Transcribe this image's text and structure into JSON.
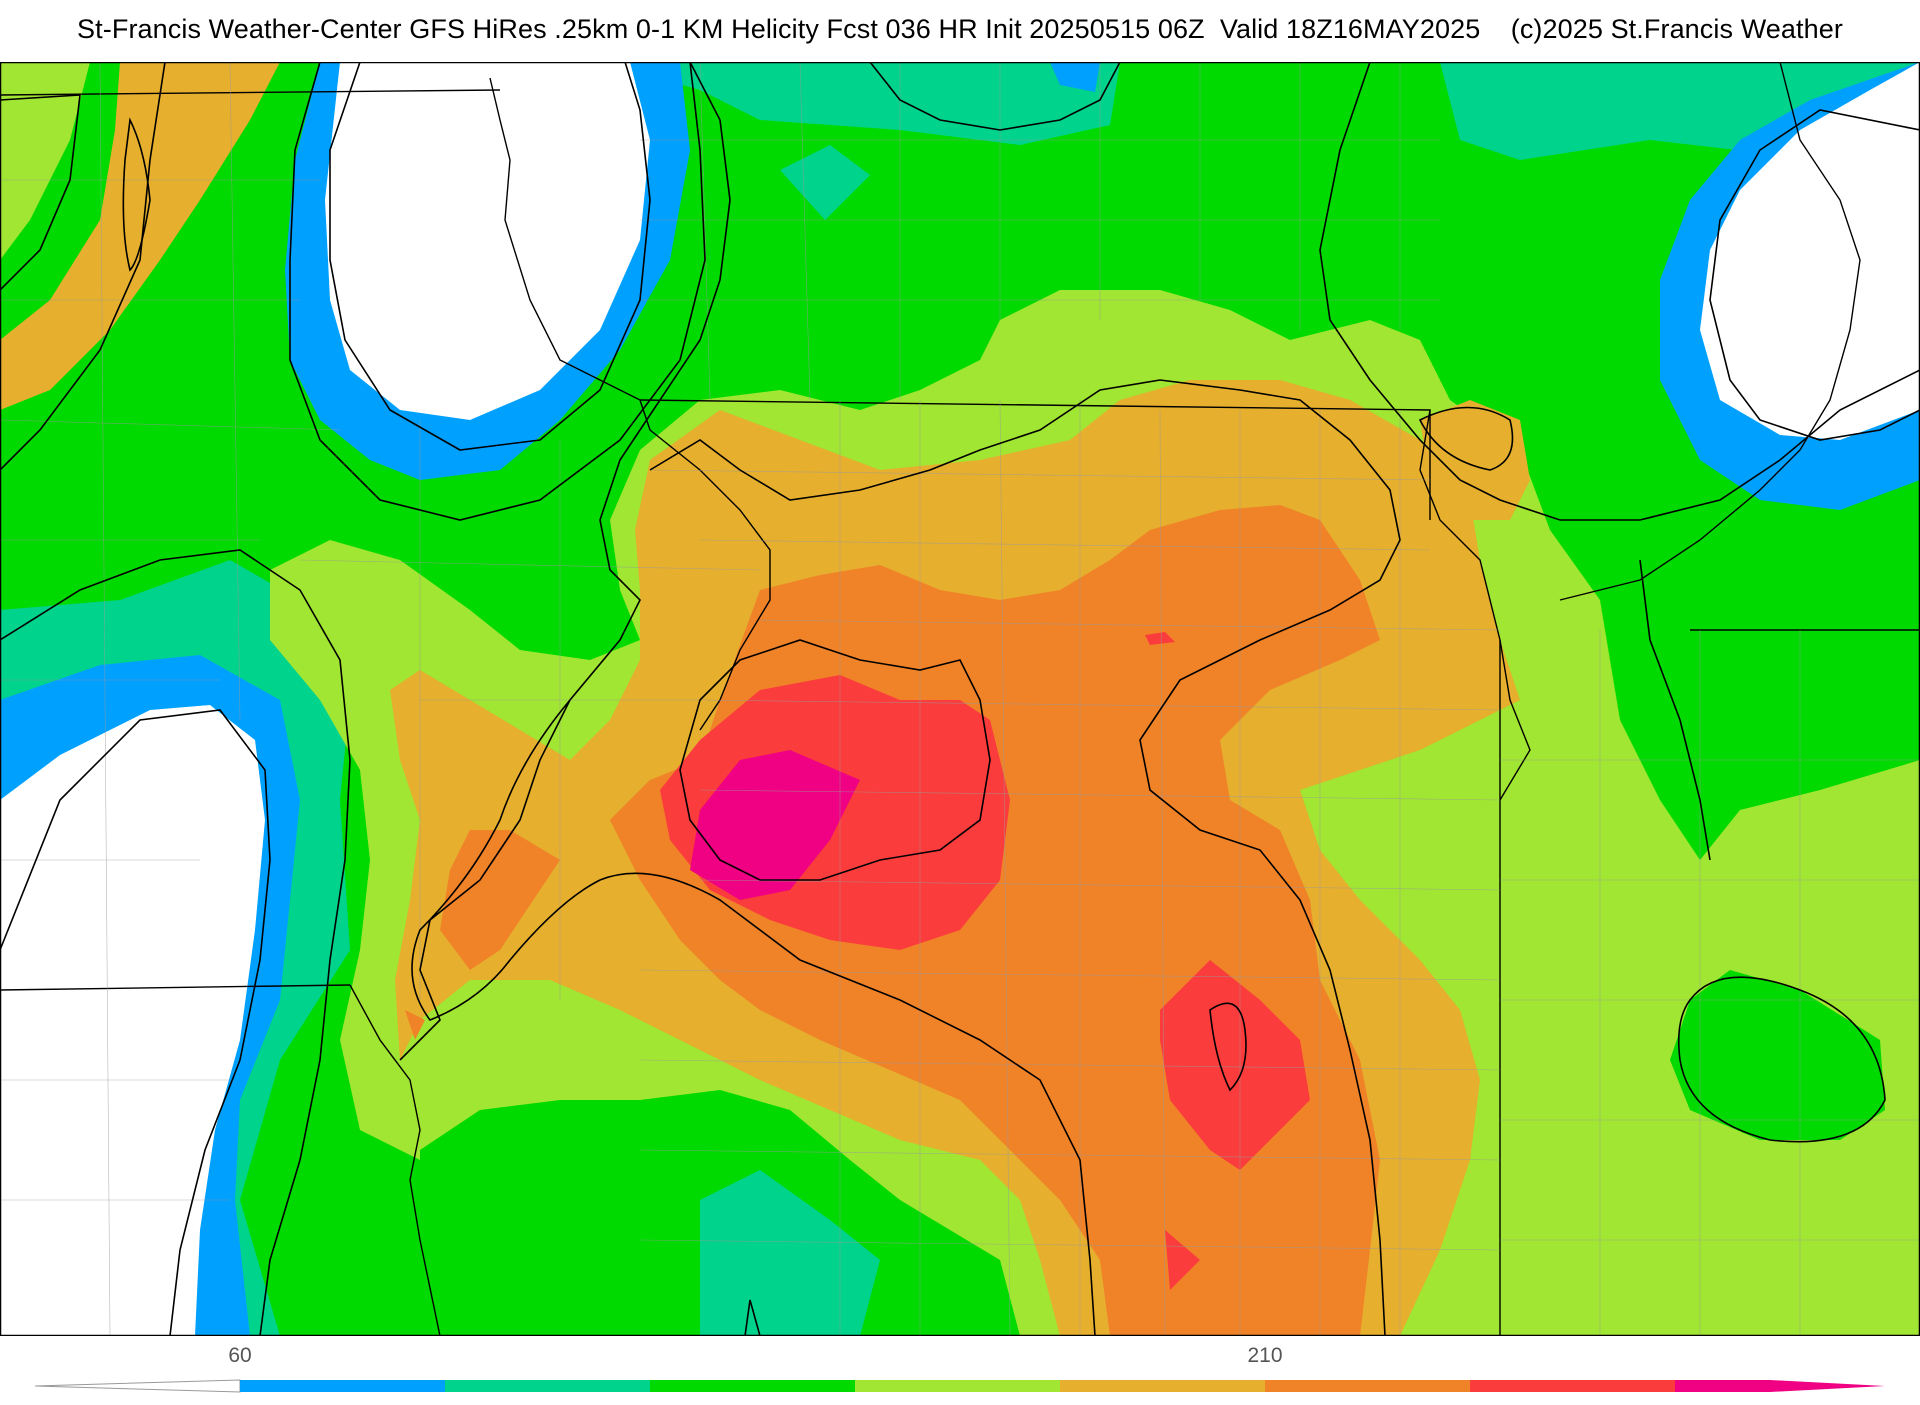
{
  "title": "St-Francis Weather-Center GFS HiRes .25km 0-1 KM Helicity Fcst 036 HR Init 20250515 06Z  Valid 18Z16MAY2025    (c)2025 St.Francis Weather",
  "legend": {
    "tick_labels": [
      "60",
      "210"
    ],
    "colors": [
      "#ffffff",
      "#00a0ff",
      "#00d38c",
      "#00da00",
      "#a0e632",
      "#e6af2e",
      "#f08228",
      "#fa3c3c",
      "#f00082"
    ]
  },
  "fill_colors": {
    "white": "#ffffff",
    "blue": "#00a0ff",
    "teal": "#00d38c",
    "green": "#00da00",
    "lime": "#a0e632",
    "gold": "#e6af2e",
    "orange": "#f08228",
    "red": "#fa3c3c",
    "magenta": "#f00082"
  }
}
